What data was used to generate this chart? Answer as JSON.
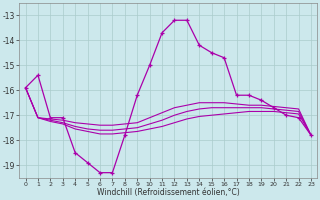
{
  "xlabel": "Windchill (Refroidissement éolien,°C)",
  "background_color": "#cce8ec",
  "grid_color": "#aacccc",
  "line_color": "#aa00aa",
  "xlim": [
    -0.5,
    23.5
  ],
  "ylim": [
    -19.5,
    -12.5
  ],
  "yticks": [
    -19,
    -18,
    -17,
    -16,
    -15,
    -14,
    -13
  ],
  "xticks": [
    0,
    1,
    2,
    3,
    4,
    5,
    6,
    7,
    8,
    9,
    10,
    11,
    12,
    13,
    14,
    15,
    16,
    17,
    18,
    19,
    20,
    21,
    22,
    23
  ],
  "series": [
    {
      "x": [
        0,
        1,
        2,
        3,
        4,
        5,
        6,
        7,
        8,
        9,
        10,
        11,
        12,
        13,
        14,
        15,
        16,
        17,
        18,
        19,
        20,
        21,
        22,
        23
      ],
      "y": [
        -15.9,
        -15.4,
        -17.1,
        -17.1,
        -18.5,
        -18.9,
        -19.3,
        -19.3,
        -17.8,
        -16.2,
        -15.0,
        -13.7,
        -13.2,
        -13.2,
        -14.2,
        -14.5,
        -14.7,
        -16.2,
        -16.2,
        -16.4,
        -16.7,
        -17.0,
        -17.1,
        -17.8
      ],
      "marker": "+"
    },
    {
      "x": [
        0,
        1,
        2,
        3,
        4,
        5,
        6,
        7,
        8,
        9,
        10,
        11,
        12,
        13,
        14,
        15,
        16,
        17,
        18,
        19,
        20,
        21,
        22,
        23
      ],
      "y": [
        -15.9,
        -17.1,
        -17.15,
        -17.2,
        -17.3,
        -17.35,
        -17.4,
        -17.4,
        -17.35,
        -17.3,
        -17.1,
        -16.9,
        -16.7,
        -16.6,
        -16.5,
        -16.5,
        -16.5,
        -16.55,
        -16.6,
        -16.6,
        -16.65,
        -16.7,
        -16.75,
        -17.8
      ],
      "marker": null
    },
    {
      "x": [
        0,
        1,
        2,
        3,
        4,
        5,
        6,
        7,
        8,
        9,
        10,
        11,
        12,
        13,
        14,
        15,
        16,
        17,
        18,
        19,
        20,
        21,
        22,
        23
      ],
      "y": [
        -15.9,
        -17.1,
        -17.2,
        -17.3,
        -17.45,
        -17.55,
        -17.6,
        -17.6,
        -17.55,
        -17.5,
        -17.35,
        -17.2,
        -17.0,
        -16.85,
        -16.75,
        -16.7,
        -16.7,
        -16.7,
        -16.7,
        -16.7,
        -16.75,
        -16.8,
        -16.85,
        -17.8
      ],
      "marker": null
    },
    {
      "x": [
        0,
        1,
        2,
        3,
        4,
        5,
        6,
        7,
        8,
        9,
        10,
        11,
        12,
        13,
        14,
        15,
        16,
        17,
        18,
        19,
        20,
        21,
        22,
        23
      ],
      "y": [
        -15.9,
        -17.1,
        -17.25,
        -17.35,
        -17.55,
        -17.65,
        -17.75,
        -17.75,
        -17.7,
        -17.65,
        -17.55,
        -17.45,
        -17.3,
        -17.15,
        -17.05,
        -17.0,
        -16.95,
        -16.9,
        -16.85,
        -16.85,
        -16.85,
        -16.9,
        -16.95,
        -17.8
      ],
      "marker": null
    }
  ]
}
